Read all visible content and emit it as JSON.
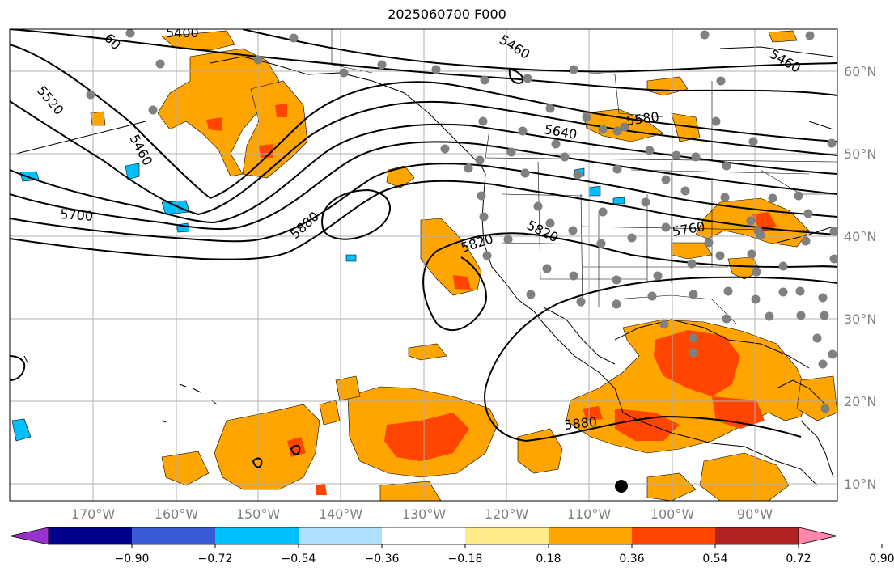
{
  "title": "2025060700 F000",
  "map": {
    "lon_range": [
      -180,
      -80
    ],
    "lat_range": [
      8,
      65
    ],
    "lon_ticks": [
      "170°W",
      "160°W",
      "150°W",
      "140°W",
      "130°W",
      "120°W",
      "110°W",
      "100°W",
      "90°W"
    ],
    "lat_ticks": [
      "10°N",
      "20°N",
      "30°N",
      "40°N",
      "50°N",
      "60°N"
    ],
    "gridlines": true
  },
  "contour_labels": [
    {
      "text": "5520"
    },
    {
      "text": "5460"
    },
    {
      "text": "5700"
    },
    {
      "text": "5880"
    },
    {
      "text": "5820"
    },
    {
      "text": "5820"
    },
    {
      "text": "5640"
    },
    {
      "text": "5580"
    },
    {
      "text": "5460"
    },
    {
      "text": "5460"
    },
    {
      "text": "5760"
    },
    {
      "text": "5880"
    },
    {
      "text": "5400"
    },
    {
      "text": "60"
    }
  ],
  "colorbar": {
    "colors": [
      "#9932cc",
      "#00008b",
      "#3a5bd6",
      "#00bfff",
      "#ade0ff",
      "#ffffff",
      "#ffeb8a",
      "#ffa500",
      "#ff4500",
      "#b22222",
      "#ff88aa"
    ],
    "tick_labels": [
      "−0.90",
      "−0.72",
      "−0.54",
      "−0.36",
      "−0.18",
      "0.18",
      "0.36",
      "0.54",
      "0.72",
      "0.90"
    ],
    "extend": "both"
  },
  "colors": {
    "positive_fill": "#ffa500",
    "strong_fill": "#ff4500",
    "negative_fill": "#00bfff",
    "station_dot": "#808080",
    "contour_line": "#000000",
    "grid": "#b0b0b0"
  }
}
